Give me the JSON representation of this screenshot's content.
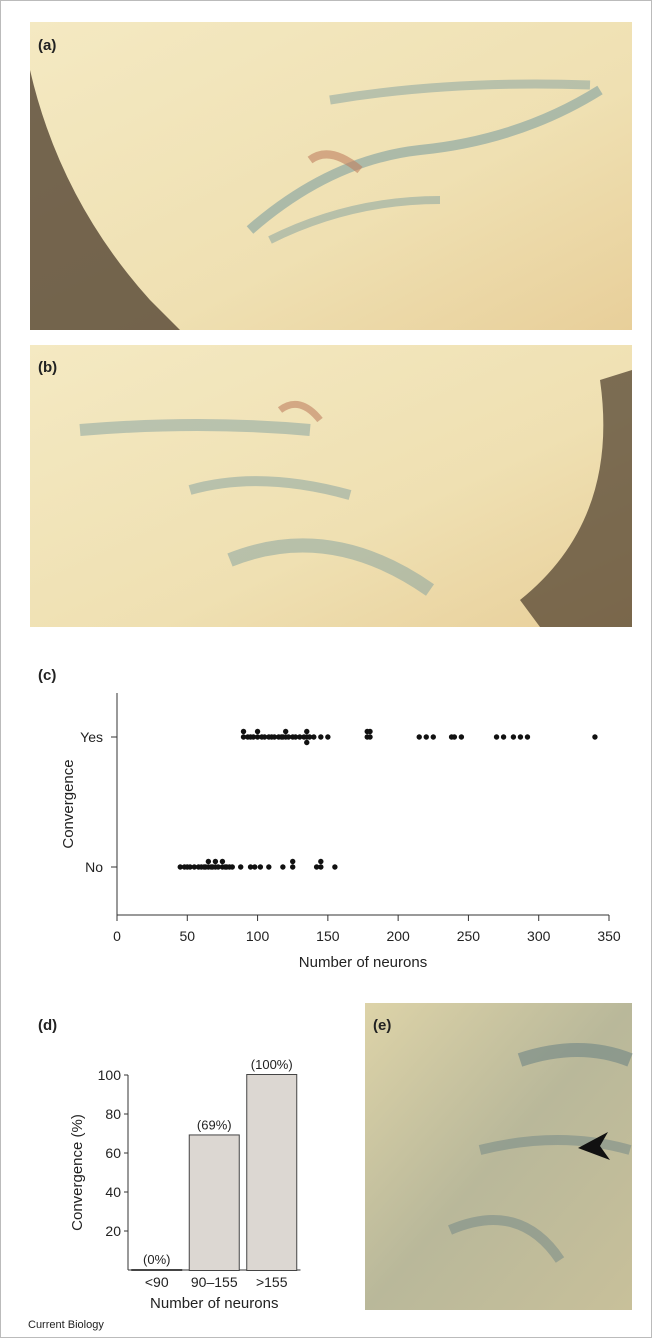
{
  "panel_labels": [
    "(a)",
    "(b)",
    "(c)",
    "(d)",
    "(e)"
  ],
  "credit": "Current Biology",
  "chart_data": [
    {
      "type": "dot",
      "xlabel": "Number of neurons",
      "ylabel": "Convergence",
      "xlim": [
        0,
        350
      ],
      "xticks": [
        0,
        50,
        100,
        150,
        200,
        250,
        300,
        350
      ],
      "color": "#111111",
      "series": [
        {
          "name": "Yes",
          "values": [
            90,
            90,
            93,
            95,
            97,
            100,
            100,
            103,
            105,
            108,
            110,
            112,
            115,
            117,
            118,
            120,
            120,
            122,
            125,
            127,
            130,
            133,
            135,
            135,
            135,
            137,
            140,
            145,
            150,
            178,
            178,
            180,
            180,
            215,
            220,
            225,
            238,
            240,
            245,
            270,
            275,
            282,
            287,
            292,
            340
          ]
        },
        {
          "name": "No",
          "values": [
            45,
            48,
            50,
            52,
            55,
            58,
            60,
            62,
            63,
            65,
            65,
            67,
            68,
            70,
            70,
            72,
            75,
            75,
            77,
            78,
            80,
            82,
            88,
            95,
            98,
            102,
            108,
            118,
            125,
            125,
            142,
            145,
            145,
            155
          ]
        }
      ]
    },
    {
      "type": "bar",
      "xlabel": "Number of neurons",
      "ylabel": "Convergence (%)",
      "categories": [
        "<90",
        "90–155",
        ">155"
      ],
      "values": [
        0,
        69,
        100
      ],
      "value_labels": [
        "(0%)",
        "(69%)",
        "(100%)"
      ],
      "ylim": [
        0,
        100
      ],
      "yticks": [
        20,
        40,
        60,
        80,
        100
      ],
      "color": "#dcd7d2"
    }
  ]
}
